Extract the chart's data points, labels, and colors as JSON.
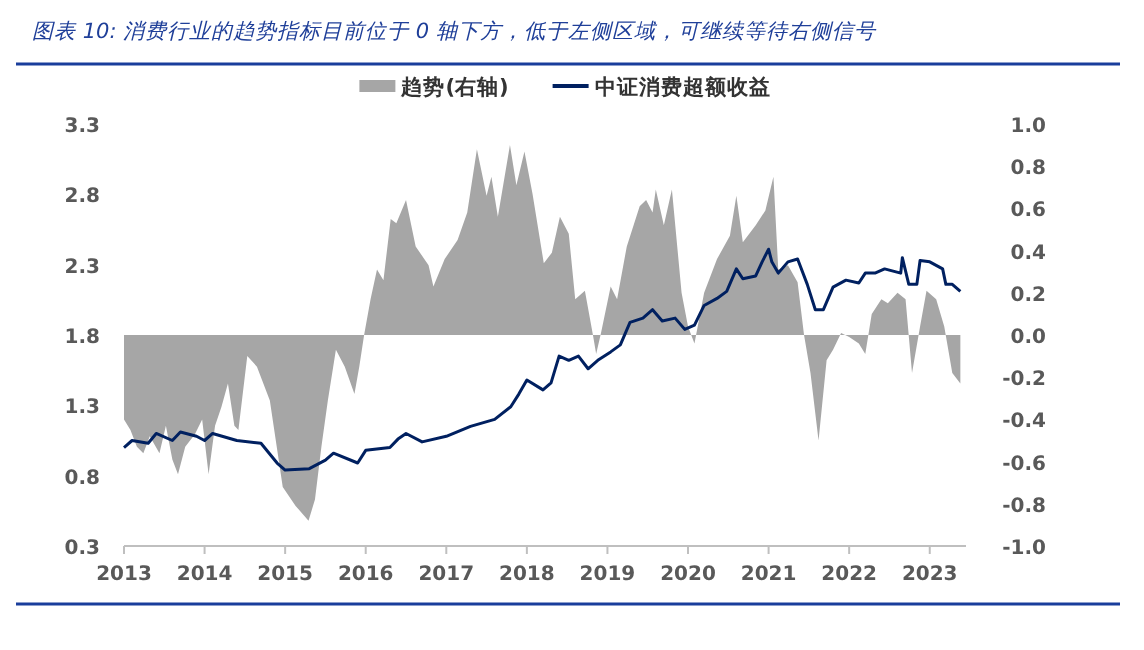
{
  "chart_data": {
    "type": "line",
    "title": "图表 10: 消费行业的趋势指标目前位于 0 轴下方，低于左侧区域，可继续等待右侧信号",
    "legend": "top",
    "xlim": [
      2013,
      2023.45
    ],
    "xticks": [
      2013,
      2014,
      2015,
      2016,
      2017,
      2018,
      2019,
      2020,
      2021,
      2022,
      2023
    ],
    "ylim": [
      0.3,
      3.3
    ],
    "yticks": [
      0.3,
      0.8,
      1.3,
      1.8,
      2.3,
      2.8,
      3.3
    ],
    "y2lim": [
      -1,
      1
    ],
    "y2ticks": [
      {
        "value": 1,
        "label": "1.0"
      },
      {
        "value": 0.8,
        "label": "0.8"
      },
      {
        "value": 0.6,
        "label": "0.6"
      },
      {
        "value": 0.4,
        "label": "0.4"
      },
      {
        "value": 0.2,
        "label": "0.2"
      },
      {
        "value": 0,
        "label": "0.0"
      },
      {
        "value": -0.2,
        "label": "-0.2"
      },
      {
        "value": -0.4,
        "label": "-0.4"
      },
      {
        "value": -0.6,
        "label": "-0.6"
      },
      {
        "value": -0.8,
        "label": "-0.8"
      },
      {
        "value": -1,
        "label": "-1.0"
      }
    ],
    "series": [
      {
        "name": "趋势(右轴)",
        "type": "area",
        "axis": "y2",
        "color": "#a6a6a6",
        "x": [
          2013.0,
          2013.08,
          2013.16,
          2013.24,
          2013.32,
          2013.44,
          2013.52,
          2013.6,
          2013.67,
          2013.76,
          2013.88,
          2013.97,
          2014.05,
          2014.13,
          2014.21,
          2014.29,
          2014.37,
          2014.42,
          2014.53,
          2014.65,
          2014.81,
          2014.97,
          2015.13,
          2015.29,
          2015.37,
          2015.45,
          2015.53,
          2015.63,
          2015.74,
          2015.86,
          2015.92,
          2015.98,
          2016.06,
          2016.14,
          2016.22,
          2016.31,
          2016.38,
          2016.5,
          2016.62,
          2016.78,
          2016.84,
          2016.98,
          2017.14,
          2017.26,
          2017.38,
          2017.5,
          2017.56,
          2017.64,
          2017.79,
          2017.87,
          2017.97,
          2018.07,
          2018.21,
          2018.31,
          2018.41,
          2018.52,
          2018.6,
          2018.72,
          2018.82,
          2018.86,
          2018.92,
          2019.04,
          2019.12,
          2019.24,
          2019.4,
          2019.48,
          2019.56,
          2019.6,
          2019.7,
          2019.8,
          2019.92,
          2020.0,
          2020.08,
          2020.2,
          2020.36,
          2020.52,
          2020.6,
          2020.68,
          2020.84,
          2020.96,
          2021.06,
          2021.12,
          2021.24,
          2021.36,
          2021.44,
          2021.52,
          2021.62,
          2021.72,
          2021.8,
          2021.9,
          2022.0,
          2022.12,
          2022.2,
          2022.28,
          2022.4,
          2022.48,
          2022.6,
          2022.7,
          2022.78,
          2022.88,
          2022.96,
          2023.08,
          2023.18,
          2023.28,
          2023.38
        ],
        "values": [
          -0.4,
          -0.45,
          -0.53,
          -0.56,
          -0.48,
          -0.56,
          -0.43,
          -0.59,
          -0.66,
          -0.53,
          -0.47,
          -0.4,
          -0.66,
          -0.43,
          -0.34,
          -0.23,
          -0.43,
          -0.45,
          -0.1,
          -0.15,
          -0.31,
          -0.72,
          -0.81,
          -0.88,
          -0.78,
          -0.53,
          -0.31,
          -0.07,
          -0.15,
          -0.28,
          -0.15,
          0,
          0.17,
          0.31,
          0.26,
          0.55,
          0.53,
          0.64,
          0.42,
          0.33,
          0.23,
          0.36,
          0.45,
          0.58,
          0.88,
          0.66,
          0.75,
          0.56,
          0.9,
          0.71,
          0.87,
          0.67,
          0.34,
          0.39,
          0.56,
          0.48,
          0.17,
          0.21,
          0,
          -0.09,
          0.01,
          0.23,
          0.17,
          0.42,
          0.61,
          0.64,
          0.58,
          0.69,
          0.52,
          0.69,
          0.2,
          0.04,
          -0.04,
          0.2,
          0.36,
          0.47,
          0.66,
          0.44,
          0.52,
          0.59,
          0.75,
          0.31,
          0.33,
          0.25,
          0,
          -0.18,
          -0.5,
          -0.12,
          -0.07,
          0.01,
          -0.01,
          -0.04,
          -0.09,
          0.1,
          0.17,
          0.15,
          0.2,
          0.17,
          -0.18,
          0.04,
          0.21,
          0.17,
          0.04,
          -0.18,
          -0.23
        ]
      },
      {
        "name": "中证消费超额收益",
        "color": "#002060",
        "x": [
          2013.0,
          2013.1,
          2013.3,
          2013.4,
          2013.6,
          2013.7,
          2013.9,
          2014.0,
          2014.1,
          2014.4,
          2014.7,
          2014.9,
          2015.0,
          2015.3,
          2015.5,
          2015.6,
          2015.9,
          2016.0,
          2016.3,
          2016.4,
          2016.5,
          2016.7,
          2017.0,
          2017.3,
          2017.6,
          2017.8,
          2017.9,
          2018.0,
          2018.2,
          2018.3,
          2018.4,
          2018.52,
          2018.64,
          2018.76,
          2018.88,
          2019.04,
          2019.16,
          2019.28,
          2019.44,
          2019.56,
          2019.68,
          2019.84,
          2019.96,
          2020.08,
          2020.2,
          2020.36,
          2020.48,
          2020.6,
          2020.68,
          2020.84,
          2020.92,
          2021.0,
          2021.04,
          2021.12,
          2021.24,
          2021.36,
          2021.48,
          2021.58,
          2021.68,
          2021.8,
          2021.96,
          2022.12,
          2022.2,
          2022.32,
          2022.44,
          2022.64,
          2022.66,
          2022.74,
          2022.84,
          2022.88,
          2023.0,
          2023.16,
          2023.2,
          2023.28,
          2023.38
        ],
        "values": [
          1.0,
          1.05,
          1.03,
          1.1,
          1.05,
          1.11,
          1.08,
          1.05,
          1.1,
          1.05,
          1.03,
          0.89,
          0.84,
          0.85,
          0.91,
          0.96,
          0.89,
          0.98,
          1.0,
          1.06,
          1.1,
          1.04,
          1.08,
          1.15,
          1.2,
          1.29,
          1.38,
          1.48,
          1.41,
          1.46,
          1.65,
          1.62,
          1.65,
          1.56,
          1.62,
          1.68,
          1.73,
          1.89,
          1.92,
          1.98,
          1.9,
          1.92,
          1.84,
          1.87,
          2.01,
          2.06,
          2.11,
          2.27,
          2.2,
          2.22,
          2.32,
          2.41,
          2.32,
          2.24,
          2.32,
          2.34,
          2.16,
          1.98,
          1.98,
          2.14,
          2.19,
          2.17,
          2.24,
          2.24,
          2.27,
          2.24,
          2.35,
          2.16,
          2.16,
          2.33,
          2.32,
          2.27,
          2.16,
          2.16,
          2.11
        ]
      }
    ]
  }
}
